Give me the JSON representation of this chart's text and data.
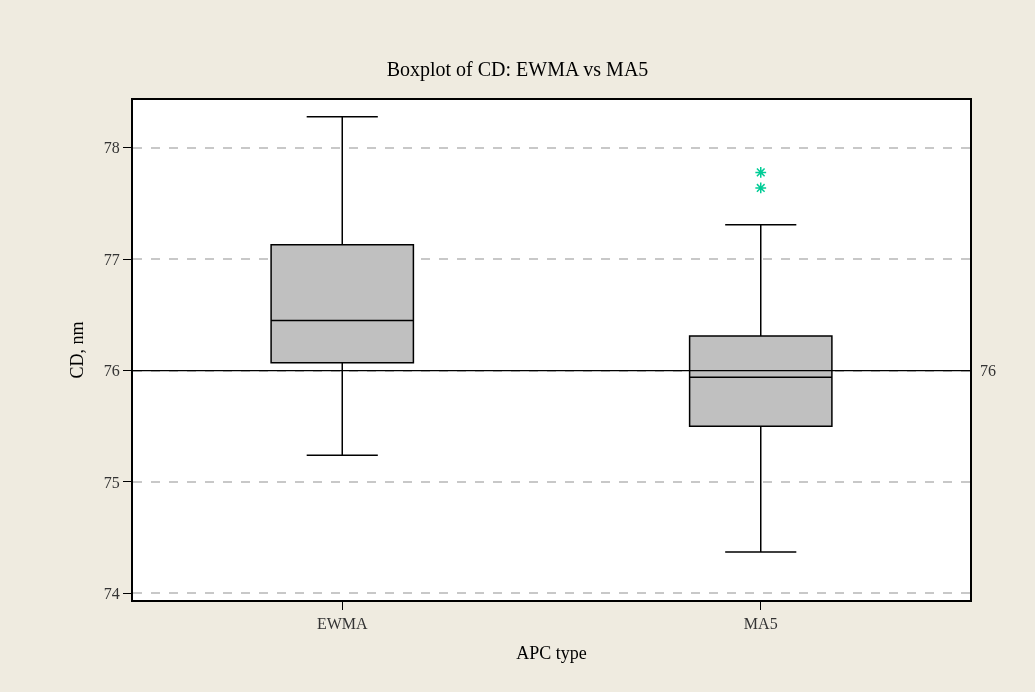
{
  "chart_data": {
    "type": "box",
    "title": "Boxplot of CD: EWMA vs MA5",
    "xlabel": "APC type",
    "ylabel": "CD, nm",
    "categories": [
      "EWMA",
      "MA5"
    ],
    "boxes": [
      {
        "low": 75.24,
        "q1": 76.07,
        "median": 76.45,
        "q3": 77.13,
        "high": 78.28
      },
      {
        "low": 74.37,
        "q1": 75.5,
        "median": 75.94,
        "q3": 76.31,
        "high": 77.31,
        "outliers": [
          77.64,
          77.78
        ]
      }
    ],
    "color": "#c0c0c0",
    "ylim": [
      73.94,
      78.43
    ],
    "yticks": [
      74,
      75,
      76,
      77,
      78
    ],
    "grid": "y",
    "ref_lines": [
      {
        "axis": "y",
        "value": 76,
        "label": "76",
        "color": "#000000",
        "line_style": "solid"
      }
    ]
  }
}
